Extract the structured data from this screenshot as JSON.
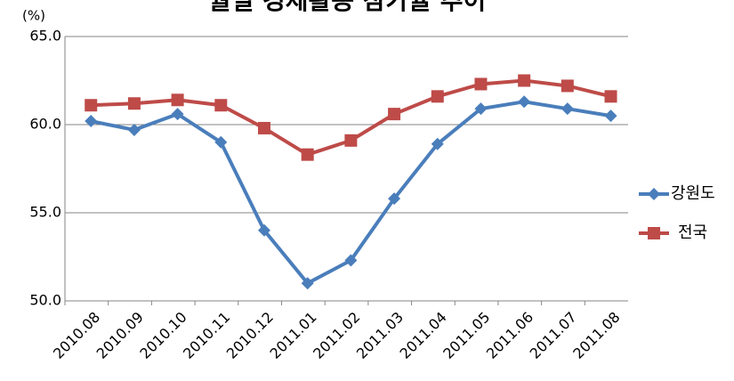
{
  "chart_data": {
    "type": "line",
    "title": "월별 경제활동 참가율 추이",
    "y_unit": "(%)",
    "categories": [
      "2010.08",
      "2010.09",
      "2010.10",
      "2010.11",
      "2010.12",
      "2011.01",
      "2011.02",
      "2011.03",
      "2011.04",
      "2011.05",
      "2011.06",
      "2011.07",
      "2011.08"
    ],
    "series": [
      {
        "name": "강원도",
        "color": "#4a7ebb",
        "marker": "diamond",
        "values": [
          60.2,
          59.7,
          60.6,
          59.0,
          54.0,
          51.0,
          52.3,
          55.8,
          58.9,
          60.9,
          61.3,
          60.9,
          60.5
        ]
      },
      {
        "name": "전국",
        "color": "#be4b48",
        "marker": "square",
        "values": [
          61.1,
          61.2,
          61.4,
          61.1,
          59.8,
          58.3,
          59.1,
          60.6,
          61.6,
          62.3,
          62.5,
          62.2,
          61.6
        ]
      }
    ],
    "ylim": [
      50,
      65
    ],
    "yticks": [
      {
        "value": 50,
        "label": "50.0"
      },
      {
        "value": 55,
        "label": "55.0"
      },
      {
        "value": 60,
        "label": "60.0"
      },
      {
        "value": 65,
        "label": "65.0"
      }
    ],
    "grid": true,
    "legend": "right"
  }
}
